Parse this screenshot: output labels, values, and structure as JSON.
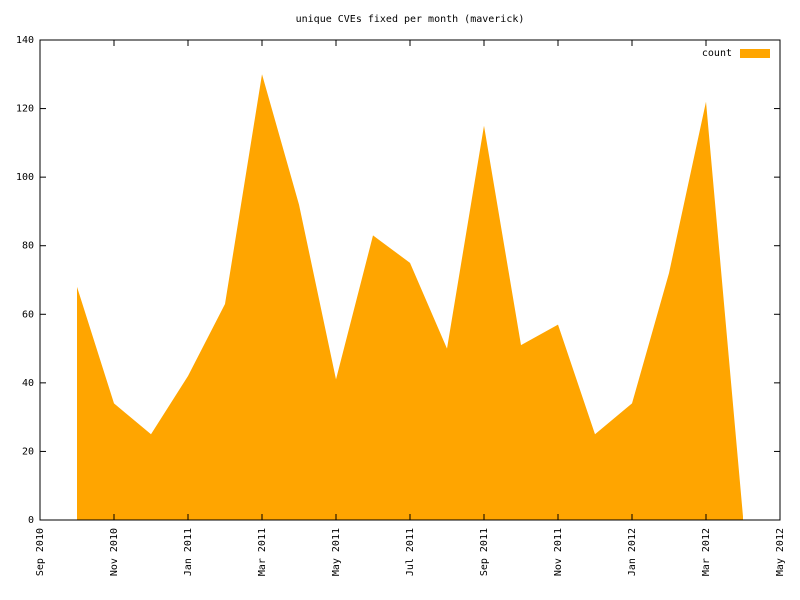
{
  "chart_data": {
    "type": "area",
    "title": "unique CVEs fixed per month (maverick)",
    "x": [
      "2010-10",
      "2010-11",
      "2010-12",
      "2011-01",
      "2011-02",
      "2011-03",
      "2011-04",
      "2011-05",
      "2011-06",
      "2011-07",
      "2011-08",
      "2011-09",
      "2011-10",
      "2011-11",
      "2011-12",
      "2012-01",
      "2012-02",
      "2012-03",
      "2012-04"
    ],
    "series": [
      {
        "name": "count",
        "color": "#ffa500",
        "values": [
          68,
          34,
          25,
          42,
          63,
          130,
          92,
          41,
          83,
          75,
          50,
          115,
          51,
          57,
          25,
          34,
          72,
          122,
          1
        ]
      }
    ],
    "xlim": [
      "2010-09",
      "2012-05"
    ],
    "xticks": [
      {
        "value": "2010-09",
        "label": "Sep 2010"
      },
      {
        "value": "2010-11",
        "label": "Nov 2010"
      },
      {
        "value": "2011-01",
        "label": "Jan 2011"
      },
      {
        "value": "2011-03",
        "label": "Mar 2011"
      },
      {
        "value": "2011-05",
        "label": "May 2011"
      },
      {
        "value": "2011-07",
        "label": "Jul 2011"
      },
      {
        "value": "2011-09",
        "label": "Sep 2011"
      },
      {
        "value": "2011-11",
        "label": "Nov 2011"
      },
      {
        "value": "2012-01",
        "label": "Jan 2012"
      },
      {
        "value": "2012-03",
        "label": "Mar 2012"
      },
      {
        "value": "2012-05",
        "label": "May 2012"
      }
    ],
    "ylim": [
      0,
      140
    ],
    "yticks": [
      0,
      20,
      40,
      60,
      80,
      100,
      120,
      140
    ],
    "legend": "top-right"
  }
}
